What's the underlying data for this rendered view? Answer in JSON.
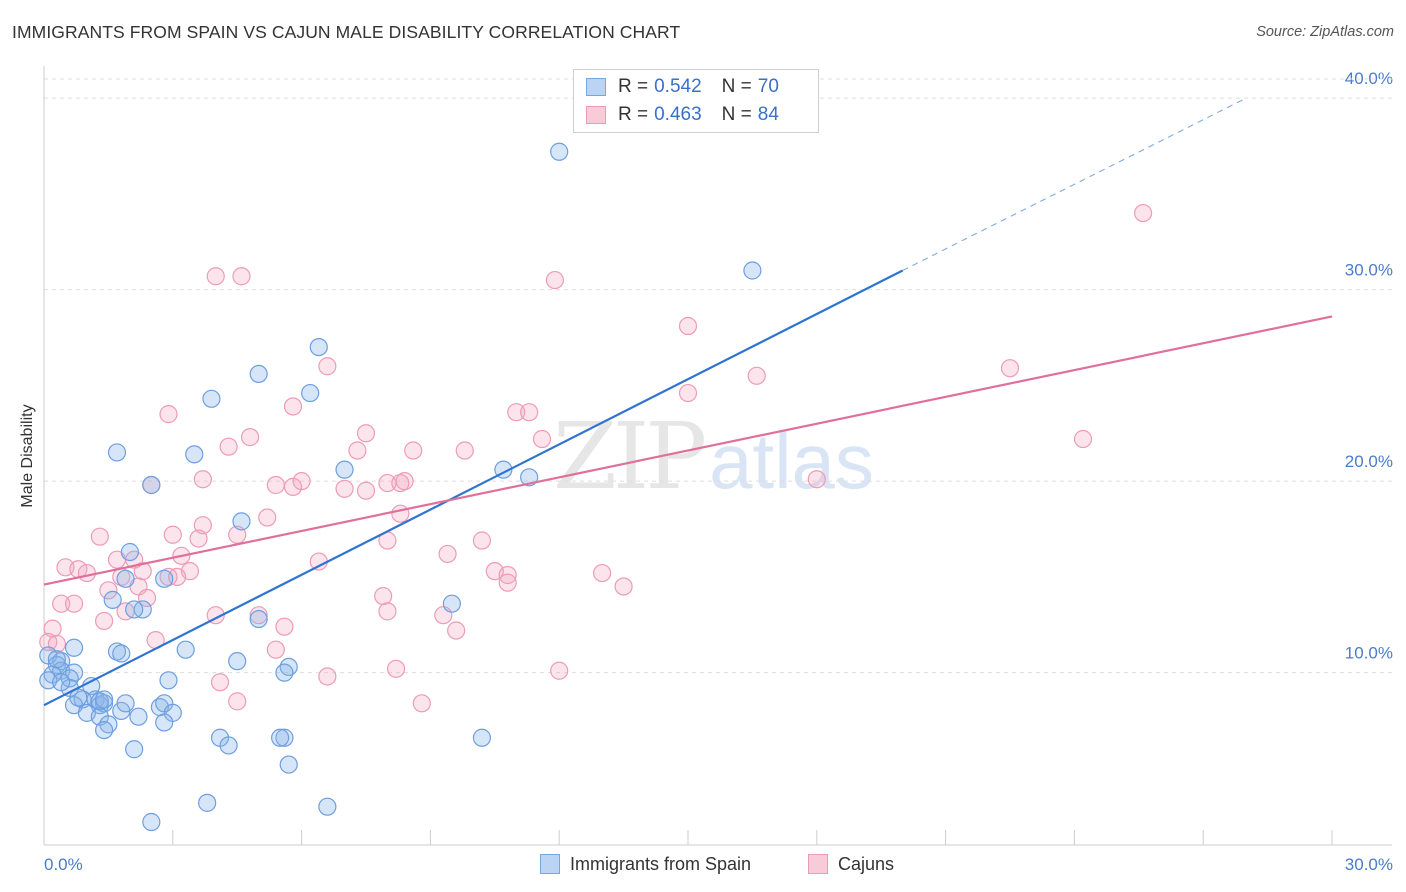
{
  "title": "IMMIGRANTS FROM SPAIN VS CAJUN MALE DISABILITY CORRELATION CHART",
  "source": "Source: ZipAtlas.com",
  "watermark": {
    "zip": "ZIP",
    "atlas": "atlas"
  },
  "legend_top": [
    {
      "r_label": "R =",
      "r_value": "0.542",
      "n_label": "N =",
      "n_value": "70"
    },
    {
      "r_label": "R =",
      "r_value": "0.463",
      "n_label": "N =",
      "n_value": "84"
    }
  ],
  "legend_bottom": {
    "series1": "Immigrants from Spain",
    "series2": "Cajuns"
  },
  "colors": {
    "blue": "#8ab4e8",
    "blue_line": "#2f74d0",
    "pink": "#f2a6bf",
    "pink_line": "#e0709a",
    "tick": "#4a7cc9"
  },
  "chart_data": {
    "type": "scatter",
    "title": "IMMIGRANTS FROM SPAIN VS CAJUN MALE DISABILITY CORRELATION CHART",
    "xlabel": "",
    "ylabel": "Male Disability",
    "xlim": [
      0,
      30
    ],
    "ylim": [
      1,
      41
    ],
    "x_ticks": [
      {
        "v": 0,
        "label": "0.0%"
      },
      {
        "v": 30,
        "label": "30.0%"
      }
    ],
    "y_ticks": [
      {
        "v": 10,
        "label": "10.0%"
      },
      {
        "v": 20,
        "label": "20.0%"
      },
      {
        "v": 30,
        "label": "30.0%"
      },
      {
        "v": 40,
        "label": "40.0%"
      }
    ],
    "grid": true,
    "legend_position": "top-center",
    "series": [
      {
        "name": "Immigrants from Spain",
        "r": 0.542,
        "n": 70,
        "trend": {
          "x0": 0,
          "y0": 8.3,
          "x1": 20,
          "y1": 31.0,
          "dash_to_x": 28,
          "dash_to_y": 40.0
        },
        "points": [
          [
            12.0,
            37.2
          ],
          [
            16.5,
            31.0
          ],
          [
            6.4,
            27.0
          ],
          [
            5.0,
            25.6
          ],
          [
            6.2,
            24.6
          ],
          [
            3.9,
            24.3
          ],
          [
            1.7,
            21.5
          ],
          [
            3.5,
            21.4
          ],
          [
            7.0,
            20.6
          ],
          [
            10.7,
            20.6
          ],
          [
            11.3,
            20.2
          ],
          [
            2.5,
            19.8
          ],
          [
            4.6,
            17.9
          ],
          [
            2.0,
            16.3
          ],
          [
            2.8,
            14.9
          ],
          [
            1.9,
            14.9
          ],
          [
            1.6,
            13.8
          ],
          [
            2.3,
            13.3
          ],
          [
            9.5,
            13.6
          ],
          [
            5.0,
            12.8
          ],
          [
            0.7,
            11.3
          ],
          [
            1.7,
            11.1
          ],
          [
            1.8,
            11.0
          ],
          [
            3.3,
            11.2
          ],
          [
            4.5,
            10.6
          ],
          [
            5.7,
            10.3
          ],
          [
            5.6,
            10.0
          ],
          [
            0.1,
            10.9
          ],
          [
            0.4,
            10.6
          ],
          [
            0.3,
            10.4
          ],
          [
            0.4,
            10.1
          ],
          [
            0.2,
            9.9
          ],
          [
            0.7,
            10.0
          ],
          [
            0.6,
            9.7
          ],
          [
            0.1,
            9.6
          ],
          [
            1.1,
            9.3
          ],
          [
            2.9,
            9.6
          ],
          [
            0.9,
            8.6
          ],
          [
            1.2,
            8.6
          ],
          [
            1.3,
            8.3
          ],
          [
            1.4,
            8.4
          ],
          [
            0.7,
            8.3
          ],
          [
            1.8,
            8.0
          ],
          [
            1.0,
            7.9
          ],
          [
            1.3,
            7.7
          ],
          [
            1.9,
            8.4
          ],
          [
            2.7,
            8.2
          ],
          [
            2.8,
            8.4
          ],
          [
            2.2,
            7.7
          ],
          [
            3.0,
            7.9
          ],
          [
            2.8,
            7.4
          ],
          [
            1.5,
            7.3
          ],
          [
            1.4,
            7.0
          ],
          [
            4.1,
            6.6
          ],
          [
            5.6,
            6.6
          ],
          [
            4.3,
            6.2
          ],
          [
            2.1,
            6.0
          ],
          [
            10.2,
            6.6
          ],
          [
            5.7,
            5.2
          ],
          [
            3.8,
            3.2
          ],
          [
            2.5,
            2.2
          ],
          [
            6.6,
            3.0
          ],
          [
            5.5,
            6.6
          ],
          [
            0.6,
            9.2
          ],
          [
            1.3,
            8.5
          ],
          [
            0.8,
            8.7
          ],
          [
            2.1,
            13.3
          ],
          [
            0.3,
            10.7
          ],
          [
            1.4,
            8.6
          ],
          [
            0.4,
            9.5
          ]
        ]
      },
      {
        "name": "Cajuns",
        "r": 0.463,
        "n": 84,
        "trend": {
          "x0": 0,
          "y0": 14.6,
          "x1": 30,
          "y1": 28.6
        },
        "points": [
          [
            25.6,
            34.0
          ],
          [
            4.0,
            30.7
          ],
          [
            4.6,
            30.7
          ],
          [
            11.9,
            30.5
          ],
          [
            15.0,
            28.1
          ],
          [
            22.5,
            25.9
          ],
          [
            6.6,
            26.0
          ],
          [
            16.6,
            25.5
          ],
          [
            15.0,
            24.6
          ],
          [
            5.8,
            23.9
          ],
          [
            11.0,
            23.6
          ],
          [
            11.3,
            23.6
          ],
          [
            2.9,
            23.5
          ],
          [
            7.5,
            22.5
          ],
          [
            4.8,
            22.3
          ],
          [
            24.2,
            22.2
          ],
          [
            11.6,
            22.2
          ],
          [
            4.3,
            21.8
          ],
          [
            7.3,
            21.6
          ],
          [
            8.6,
            21.6
          ],
          [
            9.8,
            21.6
          ],
          [
            3.7,
            20.1
          ],
          [
            18.0,
            20.1
          ],
          [
            5.4,
            19.8
          ],
          [
            6.0,
            20.0
          ],
          [
            8.0,
            19.9
          ],
          [
            8.4,
            20.0
          ],
          [
            2.5,
            19.8
          ],
          [
            5.8,
            19.7
          ],
          [
            7.0,
            19.6
          ],
          [
            7.5,
            19.5
          ],
          [
            8.3,
            19.9
          ],
          [
            8.3,
            18.3
          ],
          [
            5.2,
            18.1
          ],
          [
            3.7,
            17.7
          ],
          [
            4.5,
            17.2
          ],
          [
            1.3,
            17.1
          ],
          [
            3.0,
            17.2
          ],
          [
            3.6,
            17.0
          ],
          [
            8.0,
            16.9
          ],
          [
            10.2,
            16.9
          ],
          [
            3.2,
            16.1
          ],
          [
            9.4,
            16.2
          ],
          [
            1.7,
            15.9
          ],
          [
            2.3,
            15.3
          ],
          [
            0.5,
            15.5
          ],
          [
            0.8,
            15.4
          ],
          [
            1.0,
            15.2
          ],
          [
            3.4,
            15.3
          ],
          [
            1.8,
            15.0
          ],
          [
            2.9,
            15.0
          ],
          [
            10.5,
            15.3
          ],
          [
            10.8,
            15.1
          ],
          [
            10.8,
            14.7
          ],
          [
            13.0,
            15.2
          ],
          [
            13.5,
            14.5
          ],
          [
            1.5,
            14.3
          ],
          [
            2.2,
            14.5
          ],
          [
            2.4,
            13.9
          ],
          [
            0.4,
            13.6
          ],
          [
            0.7,
            13.6
          ],
          [
            7.9,
            14.0
          ],
          [
            8.0,
            13.2
          ],
          [
            1.9,
            13.2
          ],
          [
            4.0,
            13.0
          ],
          [
            5.0,
            13.0
          ],
          [
            9.3,
            13.0
          ],
          [
            1.4,
            12.7
          ],
          [
            0.2,
            12.3
          ],
          [
            5.6,
            12.4
          ],
          [
            9.6,
            12.2
          ],
          [
            2.6,
            11.7
          ],
          [
            5.4,
            11.2
          ],
          [
            0.1,
            11.6
          ],
          [
            0.3,
            11.5
          ],
          [
            8.2,
            10.2
          ],
          [
            12.0,
            10.1
          ],
          [
            6.6,
            9.8
          ],
          [
            4.1,
            9.5
          ],
          [
            4.5,
            8.5
          ],
          [
            8.8,
            8.4
          ],
          [
            3.1,
            15.0
          ],
          [
            2.1,
            15.9
          ],
          [
            6.4,
            15.8
          ]
        ]
      }
    ]
  }
}
